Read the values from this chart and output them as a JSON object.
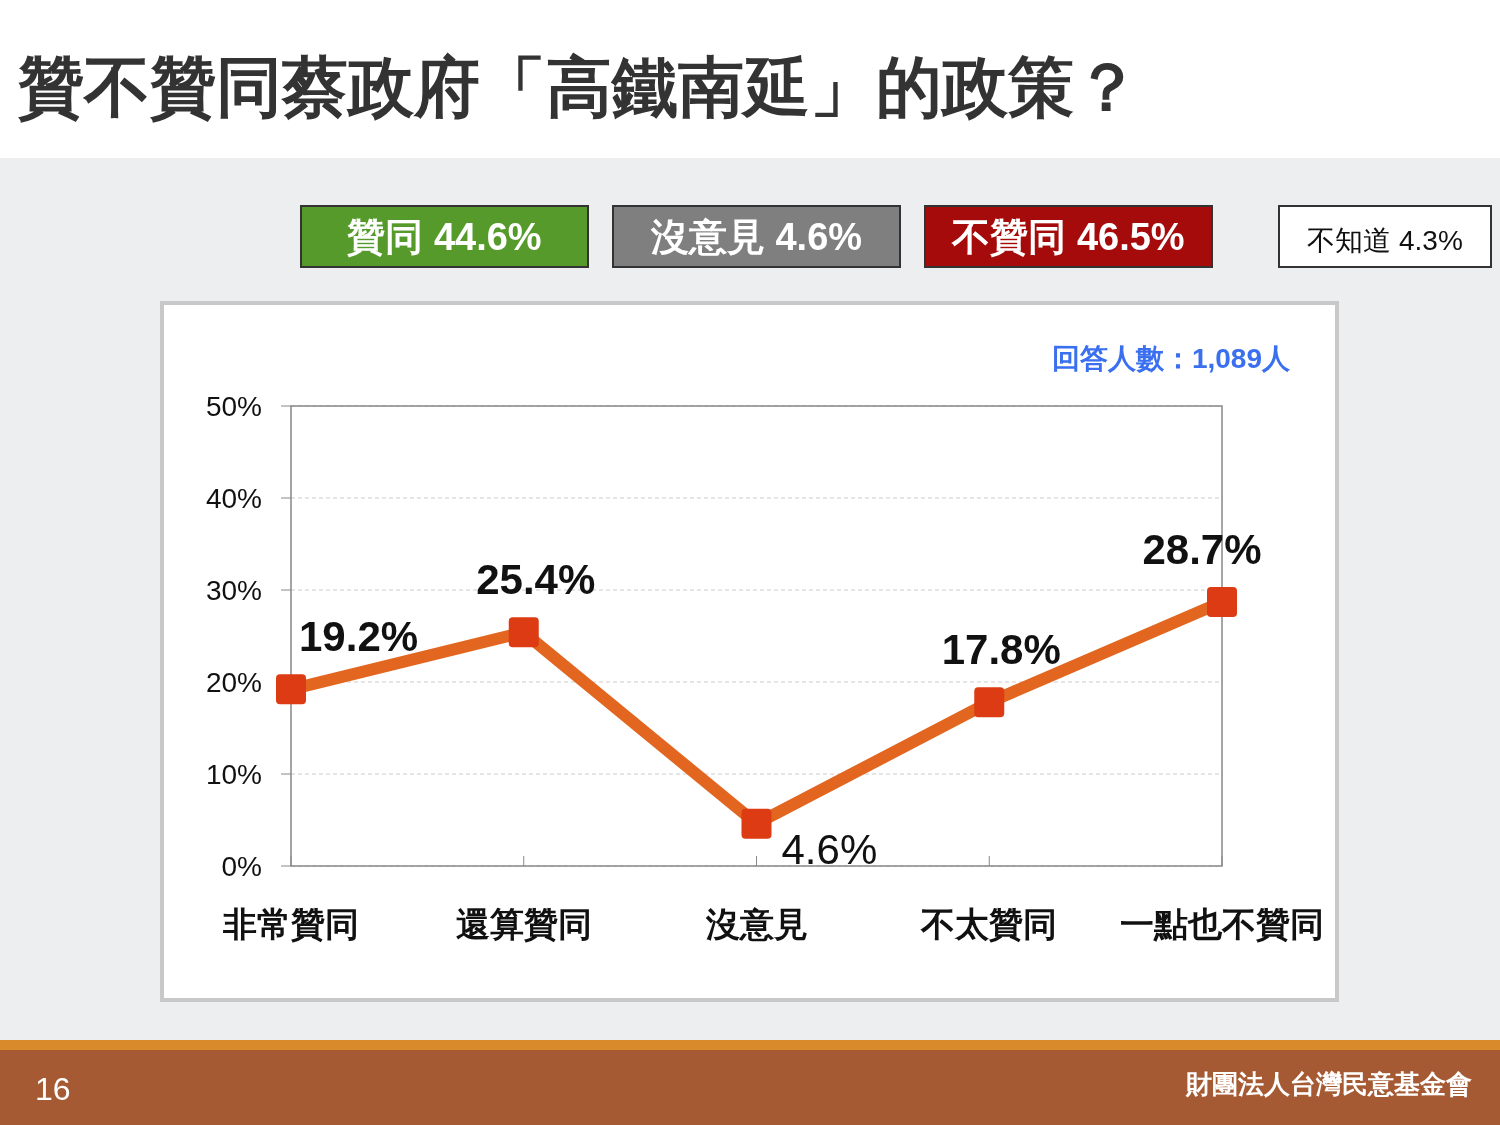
{
  "chart_data": {
    "type": "line",
    "title": "贊不贊同蔡政府「高鐵南延」的政策？",
    "categories": [
      "非常贊同",
      "還算贊同",
      "沒意見",
      "不太贊同",
      "一點也不贊同"
    ],
    "values": [
      19.2,
      25.4,
      4.6,
      17.8,
      28.7
    ],
    "value_labels": [
      "19.2%",
      "25.4%",
      "4.6%",
      "17.8%",
      "28.7%"
    ],
    "color": "#e2661f",
    "marker": "square",
    "grid": "y",
    "ylim": [
      0,
      50
    ],
    "yticks": [
      {
        "value": 0,
        "label": "0%"
      },
      {
        "value": 10,
        "label": "10%"
      },
      {
        "value": 20,
        "label": "20%"
      },
      {
        "value": 30,
        "label": "30%"
      },
      {
        "value": 40,
        "label": "40%"
      },
      {
        "value": 50,
        "label": "50%"
      }
    ],
    "annotations": [
      "贊同 44.6%",
      "沒意見 4.6%",
      "不贊同 46.5%",
      "不知道 4.3%",
      "回答人數：1,089人",
      "16",
      "財團法人台灣民意基金會"
    ]
  }
}
